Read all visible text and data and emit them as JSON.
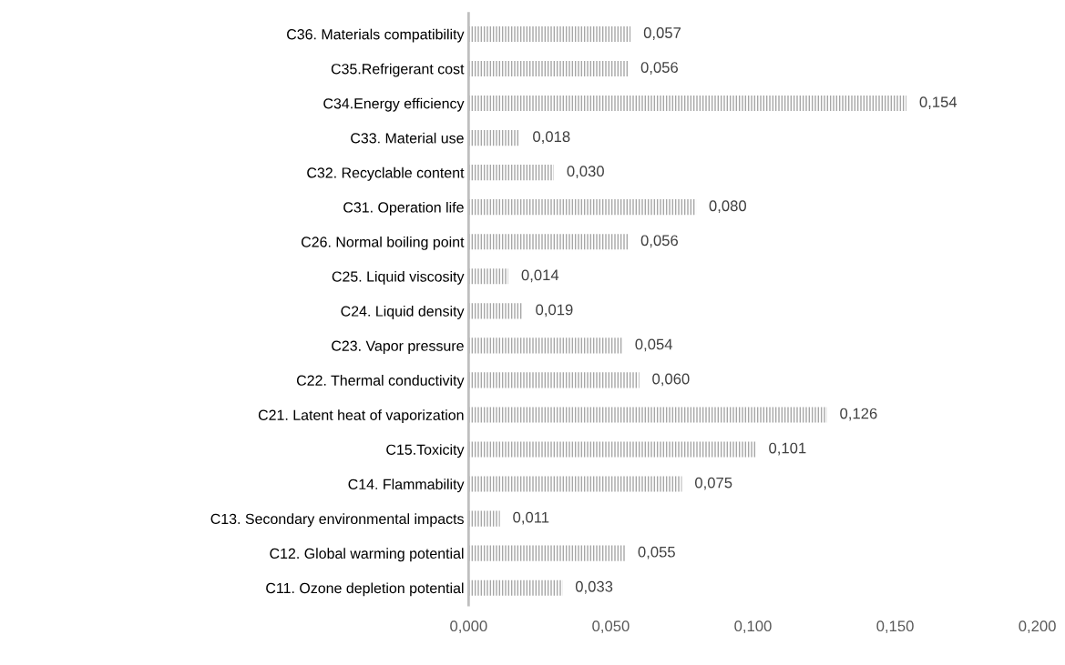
{
  "chart_data": {
    "type": "bar",
    "orientation": "horizontal",
    "categories": [
      "C36. Materials compatibility",
      "C35.Refrigerant cost",
      "C34.Energy efficiency",
      "C33. Material use",
      "C32. Recyclable content",
      "C31. Operation life",
      "C26. Normal boiling point",
      "C25. Liquid viscosity",
      "C24. Liquid density",
      "C23. Vapor pressure",
      "C22. Thermal conductivity",
      "C21. Latent heat of vaporization",
      "C15.Toxicity",
      "C14. Flammability",
      "C13. Secondary environmental impacts",
      "C12. Global warming potential",
      "C11. Ozone depletion potential"
    ],
    "values": [
      0.057,
      0.056,
      0.154,
      0.018,
      0.03,
      0.08,
      0.056,
      0.014,
      0.019,
      0.054,
      0.06,
      0.126,
      0.101,
      0.075,
      0.011,
      0.055,
      0.033
    ],
    "value_labels": [
      "0,057",
      "0,056",
      "0,154",
      "0,018",
      "0,030",
      "0,080",
      "0,056",
      "0,014",
      "0,019",
      "0,054",
      "0,060",
      "0,126",
      "0,101",
      "0,075",
      "0,011",
      "0,055",
      "0,033"
    ],
    "color": "#a6a6a6",
    "xlim": [
      0,
      0.2
    ],
    "xticks": [
      {
        "value": 0,
        "label": "0,000"
      },
      {
        "value": 0.05,
        "label": "0,050"
      },
      {
        "value": 0.1,
        "label": "0,100"
      },
      {
        "value": 0.15,
        "label": "0,150"
      },
      {
        "value": 0.2,
        "label": "0,200"
      }
    ],
    "grid": false,
    "legend": false
  }
}
